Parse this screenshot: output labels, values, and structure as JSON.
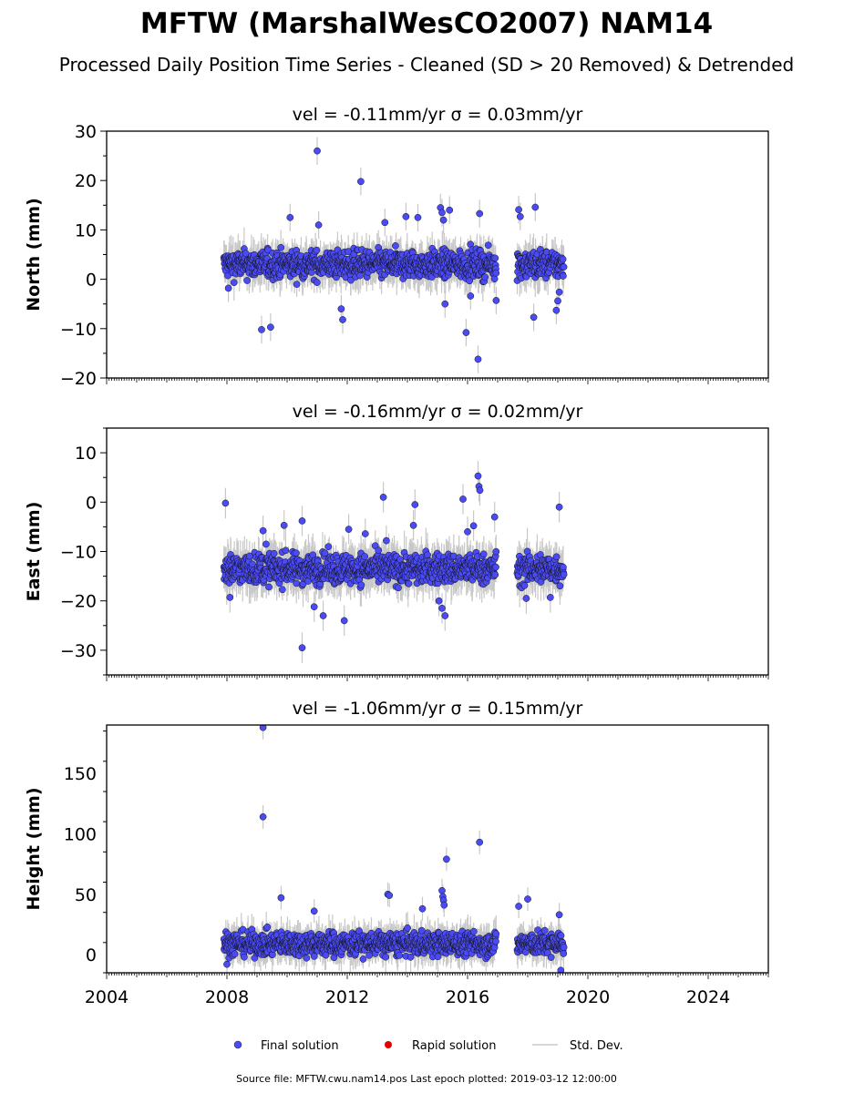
{
  "title": "MFTW (MarshalWesCO2007) NAM14",
  "subtitle": "Processed Daily Position Time Series - Cleaned (SD > 20 Removed) & Detrended",
  "footer": "Source file: MFTW.cwu.nam14.pos  Last epoch plotted: 2019-03-12 12:00:00",
  "colors": {
    "final": "#4b4bf5",
    "rapid": "#e00000",
    "stddev": "#c8c8c8",
    "cluster": "#333333"
  },
  "chart_data": [
    {
      "type": "scatter",
      "title": "vel = -0.11mm/yr   σ = 0.03mm/yr",
      "ylabel": "North (mm)",
      "xlim": [
        2004,
        2026
      ],
      "ylim": [
        -20,
        30
      ],
      "yticks": [
        -20,
        -10,
        0,
        10,
        20,
        30
      ],
      "xticks_shown": false,
      "grid": false,
      "baseline": 3,
      "spread": 2,
      "segments": [
        [
          2007.9,
          2016.95
        ],
        [
          2017.65,
          2019.2
        ]
      ],
      "series": [
        {
          "name": "Final solution",
          "outliers": [
            [
              2008.05,
              -1.8
            ],
            [
              2009.15,
              -10.2
            ],
            [
              2009.45,
              -9.7
            ],
            [
              2010.1,
              12.5
            ],
            [
              2011.0,
              26.0
            ],
            [
              2011.05,
              11.0
            ],
            [
              2011.8,
              -6.0
            ],
            [
              2011.85,
              -8.2
            ],
            [
              2012.45,
              19.8
            ],
            [
              2013.25,
              11.5
            ],
            [
              2013.95,
              12.7
            ],
            [
              2014.35,
              12.5
            ],
            [
              2015.1,
              14.5
            ],
            [
              2015.15,
              13.5
            ],
            [
              2015.2,
              12.0
            ],
            [
              2015.25,
              -5.0
            ],
            [
              2015.4,
              14.0
            ],
            [
              2015.95,
              -10.8
            ],
            [
              2016.1,
              -3.4
            ],
            [
              2016.35,
              -16.2
            ],
            [
              2016.4,
              13.3
            ],
            [
              2016.95,
              -4.3
            ],
            [
              2017.7,
              14.1
            ],
            [
              2017.75,
              12.7
            ],
            [
              2018.25,
              14.6
            ],
            [
              2018.2,
              -7.7
            ],
            [
              2018.95,
              -6.3
            ],
            [
              2019.0,
              -4.4
            ],
            [
              2019.05,
              -2.6
            ]
          ]
        },
        {
          "name": "Rapid solution",
          "outliers": []
        }
      ]
    },
    {
      "type": "scatter",
      "title": "vel = -0.16mm/yr   σ = 0.02mm/yr",
      "ylabel": "East (mm)",
      "xlim": [
        2004,
        2026
      ],
      "ylim": [
        -35,
        15
      ],
      "yticks": [
        -30,
        -20,
        -10,
        0,
        10
      ],
      "xticks_shown": false,
      "grid": false,
      "baseline": -13.5,
      "spread": 2.2,
      "segments": [
        [
          2007.9,
          2016.95
        ],
        [
          2017.65,
          2019.2
        ]
      ],
      "series": [
        {
          "name": "Final solution",
          "outliers": [
            [
              2007.95,
              -0.2
            ],
            [
              2008.1,
              -19.3
            ],
            [
              2009.2,
              -5.8
            ],
            [
              2009.3,
              -8.5
            ],
            [
              2009.9,
              -4.7
            ],
            [
              2010.5,
              -29.5
            ],
            [
              2010.5,
              -3.8
            ],
            [
              2010.9,
              -21.2
            ],
            [
              2011.2,
              -23.0
            ],
            [
              2011.9,
              -24.0
            ],
            [
              2012.05,
              -5.5
            ],
            [
              2012.6,
              -6.4
            ],
            [
              2013.2,
              1.0
            ],
            [
              2013.3,
              -7.8
            ],
            [
              2014.2,
              -4.7
            ],
            [
              2014.25,
              -0.5
            ],
            [
              2015.05,
              -20.0
            ],
            [
              2015.15,
              -21.5
            ],
            [
              2015.25,
              -23.0
            ],
            [
              2015.85,
              0.6
            ],
            [
              2016.0,
              -6.0
            ],
            [
              2016.2,
              -4.8
            ],
            [
              2016.35,
              5.3
            ],
            [
              2016.38,
              3.2
            ],
            [
              2016.41,
              2.4
            ],
            [
              2016.9,
              -3.0
            ],
            [
              2017.95,
              -19.5
            ],
            [
              2018.75,
              -19.3
            ],
            [
              2019.05,
              -1.0
            ]
          ]
        },
        {
          "name": "Rapid solution",
          "outliers": []
        }
      ]
    },
    {
      "type": "scatter",
      "title": "vel = -1.06mm/yr   σ = 0.15mm/yr",
      "ylabel": "Height (mm)",
      "xlim": [
        2004,
        2026
      ],
      "ylim": [
        -15,
        190
      ],
      "yticks": [
        0,
        50,
        100,
        150
      ],
      "xticks": [
        2004,
        2008,
        2012,
        2016,
        2020,
        2024
      ],
      "xticks_shown": true,
      "grid": false,
      "baseline": 9,
      "spread": 7,
      "segments": [
        [
          2007.9,
          2016.95
        ],
        [
          2017.65,
          2019.2
        ]
      ],
      "series": [
        {
          "name": "Final solution",
          "outliers": [
            [
              2009.2,
              188
            ],
            [
              2009.2,
              114
            ],
            [
              2009.8,
              47
            ],
            [
              2010.9,
              36
            ],
            [
              2013.35,
              50
            ],
            [
              2013.4,
              49
            ],
            [
              2014.5,
              38
            ],
            [
              2015.15,
              53
            ],
            [
              2015.18,
              48
            ],
            [
              2015.2,
              45
            ],
            [
              2015.22,
              41
            ],
            [
              2015.3,
              79
            ],
            [
              2016.4,
              93
            ],
            [
              2017.7,
              40
            ],
            [
              2018.0,
              46
            ],
            [
              2019.05,
              33
            ],
            [
              2008.0,
              -8
            ],
            [
              2019.1,
              -13
            ]
          ]
        },
        {
          "name": "Rapid solution",
          "outliers": []
        }
      ]
    }
  ],
  "legend": {
    "final": "Final solution",
    "rapid": "Rapid solution",
    "stddev": "Std. Dev."
  }
}
